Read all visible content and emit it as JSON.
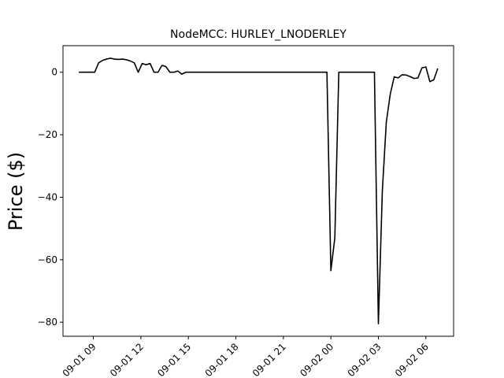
{
  "chart_data": {
    "type": "line",
    "title": "NodeMCC: HURLEY_LNODERLEY",
    "xlabel": "",
    "ylabel": "Price ($)",
    "x_tick_labels": [
      "09-01 09",
      "09-01 12",
      "09-01 15",
      "09-01 18",
      "09-01 21",
      "09-02 00",
      "09-02 03",
      "09-02 06"
    ],
    "y_ticks": [
      0,
      -20,
      -40,
      -60,
      -80
    ],
    "y_tick_labels": [
      "0",
      "−20",
      "−40",
      "−60",
      "−80"
    ],
    "xlim": [
      "2023-09-01 07:05",
      "2023-09-02 07:45"
    ],
    "ylim": [
      -84.5,
      8.5
    ],
    "grid": false,
    "line_color": "#000000",
    "series": [
      {
        "x": [
          "2023-09-01 08:05",
          "2023-09-01 08:20",
          "2023-09-01 08:35",
          "2023-09-01 08:50",
          "2023-09-01 09:05",
          "2023-09-01 09:20",
          "2023-09-01 09:35",
          "2023-09-01 09:50",
          "2023-09-01 10:05",
          "2023-09-01 10:20",
          "2023-09-01 10:35",
          "2023-09-01 10:50",
          "2023-09-01 11:05",
          "2023-09-01 11:20",
          "2023-09-01 11:35",
          "2023-09-01 11:50",
          "2023-09-01 12:05",
          "2023-09-01 12:20",
          "2023-09-01 12:35",
          "2023-09-01 12:50",
          "2023-09-01 13:05",
          "2023-09-01 13:20",
          "2023-09-01 13:35",
          "2023-09-01 13:50",
          "2023-09-01 14:05",
          "2023-09-01 14:20",
          "2023-09-01 14:35",
          "2023-09-01 14:50",
          "2023-09-01 15:05",
          "2023-09-01 18:00",
          "2023-09-01 21:00",
          "2023-09-01 23:45",
          "2023-09-02 00:00",
          "2023-09-02 00:15",
          "2023-09-02 00:30",
          "2023-09-02 02:00",
          "2023-09-02 02:45",
          "2023-09-02 03:00",
          "2023-09-02 03:15",
          "2023-09-02 03:30",
          "2023-09-02 03:45",
          "2023-09-02 04:00",
          "2023-09-02 04:15",
          "2023-09-02 04:30",
          "2023-09-02 04:45",
          "2023-09-02 05:00",
          "2023-09-02 05:15",
          "2023-09-02 05:30",
          "2023-09-02 05:45",
          "2023-09-02 06:00",
          "2023-09-02 06:15",
          "2023-09-02 06:30",
          "2023-09-02 06:45"
        ],
        "y": [
          0,
          0,
          0,
          0,
          0,
          3,
          3.8,
          4.2,
          4.5,
          4.2,
          4.1,
          4.2,
          4,
          3.6,
          3,
          0,
          2.8,
          2.4,
          2.8,
          0,
          0,
          2.2,
          1.8,
          0,
          0,
          0.4,
          -0.6,
          0,
          0,
          0,
          0,
          0,
          -63.5,
          -53,
          0,
          0,
          0,
          -80.5,
          -38,
          -16,
          -7,
          -1.5,
          -1.8,
          -0.8,
          -0.9,
          -1.4,
          -2,
          -1.8,
          1.4,
          1.7,
          -3,
          -2.4,
          1.2
        ]
      }
    ]
  }
}
